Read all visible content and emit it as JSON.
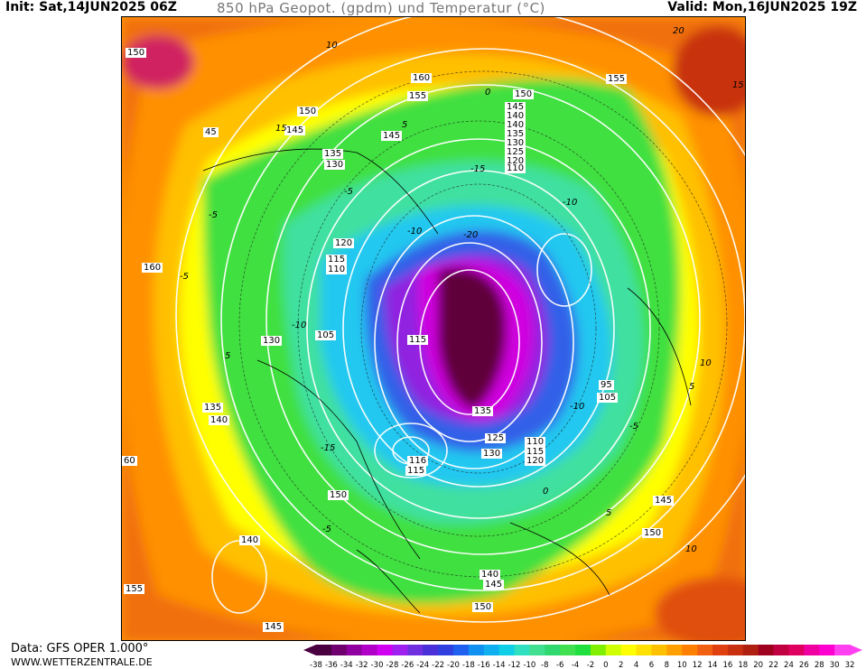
{
  "header": {
    "init": "Init: Sat,14JUN2025 06Z",
    "title": "850 hPa Geopot. (gpdm) und Temperatur (°C)",
    "valid": "Valid: Mon,16JUN2025 19Z"
  },
  "footer": {
    "source": "Data: GFS OPER 1.000°",
    "url": "WWW.WETTERZENTRALE.DE"
  },
  "legend": {
    "ticks": [
      "-38",
      "-36",
      "-34",
      "-32",
      "-30",
      "-28",
      "-26",
      "-24",
      "-22",
      "-20",
      "-18",
      "-16",
      "-14",
      "-12",
      "-10",
      "-8",
      "-6",
      "-4",
      "-2",
      "0",
      "2",
      "4",
      "6",
      "8",
      "10",
      "12",
      "14",
      "16",
      "18",
      "20",
      "22",
      "24",
      "26",
      "28",
      "30",
      "32"
    ],
    "colors": [
      "#4a0040",
      "#700070",
      "#9000a0",
      "#b000c8",
      "#d000f0",
      "#a020f0",
      "#7030e0",
      "#4a30d8",
      "#3040e0",
      "#2060f0",
      "#1090f0",
      "#10b0f0",
      "#10d0e8",
      "#30e0c0",
      "#40e090",
      "#30d870",
      "#40e050",
      "#20e040",
      "#80f000",
      "#d0ff00",
      "#ffff00",
      "#ffe000",
      "#ffc000",
      "#ffa000",
      "#ff8000",
      "#f06010",
      "#e04010",
      "#c83010",
      "#b02010",
      "#a00020",
      "#c00040",
      "#e00060",
      "#f000a0",
      "#ff00d0",
      "#ff40f0"
    ]
  },
  "map": {
    "geopotential_labels": [
      "150",
      "160",
      "155",
      "150",
      "145",
      "140",
      "145",
      "150",
      "45",
      "135",
      "130",
      "155",
      "145",
      "140",
      "135",
      "130",
      "125",
      "120",
      "110",
      "120",
      "115",
      "110",
      "160",
      "130",
      "105",
      "115",
      "135",
      "140",
      "150",
      "140",
      "155",
      "145",
      "115",
      "116",
      "135",
      "130",
      "125",
      "110",
      "115",
      "120",
      "105",
      "95",
      "145",
      "150",
      "140",
      "145",
      "150",
      "60"
    ],
    "temperature_labels": [
      "10",
      "-5",
      "-10",
      "-15",
      "-20",
      "0",
      "5",
      "15",
      "20",
      "-5",
      "-10",
      "10",
      "5",
      "-10",
      "-15",
      "5",
      "-5",
      "0",
      "-5",
      "5",
      "10",
      "15",
      "-10",
      "-5"
    ]
  }
}
